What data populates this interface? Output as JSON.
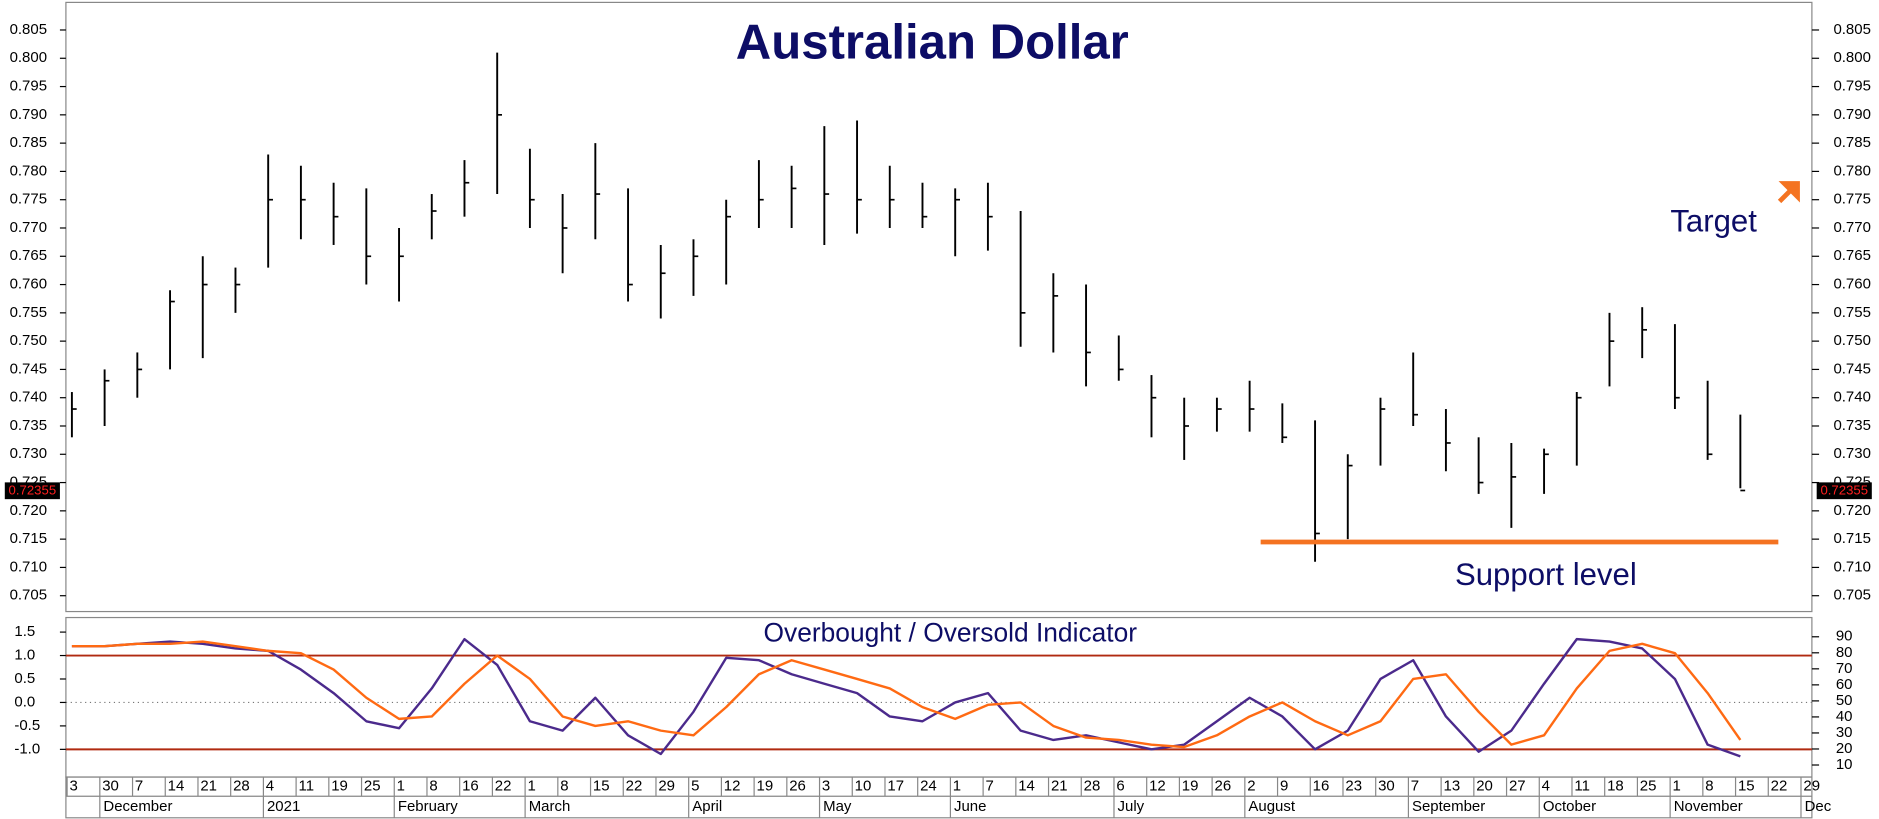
{
  "chart_data": [
    {
      "type": "ohlc",
      "title": "Australian Dollar",
      "color": "#000000",
      "high": [
        0.741,
        0.745,
        0.748,
        0.759,
        0.765,
        0.763,
        0.783,
        0.781,
        0.778,
        0.777,
        0.77,
        0.776,
        0.782,
        0.801,
        0.784,
        0.776,
        0.785,
        0.777,
        0.767,
        0.768,
        0.775,
        0.782,
        0.781,
        0.788,
        0.789,
        0.781,
        0.778,
        0.777,
        0.778,
        0.773,
        0.762,
        0.76,
        0.751,
        0.744,
        0.74,
        0.74,
        0.743,
        0.739,
        0.736,
        0.73,
        0.74,
        0.748,
        0.738,
        0.733,
        0.732,
        0.731,
        0.741,
        0.755,
        0.756,
        0.753,
        0.743,
        0.737,
        null,
        null
      ],
      "low": [
        0.733,
        0.735,
        0.74,
        0.745,
        0.747,
        0.755,
        0.763,
        0.768,
        0.767,
        0.76,
        0.757,
        0.768,
        0.772,
        0.776,
        0.77,
        0.762,
        0.768,
        0.757,
        0.754,
        0.758,
        0.76,
        0.77,
        0.77,
        0.767,
        0.769,
        0.77,
        0.77,
        0.765,
        0.766,
        0.749,
        0.748,
        0.742,
        0.743,
        0.733,
        0.729,
        0.734,
        0.734,
        0.732,
        0.711,
        0.715,
        0.728,
        0.735,
        0.727,
        0.723,
        0.717,
        0.723,
        0.728,
        0.742,
        0.747,
        0.738,
        0.729,
        0.724,
        null,
        null
      ],
      "close": [
        0.738,
        0.743,
        0.745,
        0.757,
        0.76,
        0.76,
        0.775,
        0.775,
        0.772,
        0.765,
        0.765,
        0.773,
        0.778,
        0.79,
        0.775,
        0.77,
        0.776,
        0.76,
        0.762,
        0.765,
        0.772,
        0.775,
        0.777,
        0.776,
        0.775,
        0.775,
        0.772,
        0.775,
        0.772,
        0.755,
        0.758,
        0.748,
        0.745,
        0.74,
        0.735,
        0.738,
        0.738,
        0.733,
        0.716,
        0.728,
        0.738,
        0.737,
        0.732,
        0.725,
        0.726,
        0.73,
        0.74,
        0.75,
        0.752,
        0.74,
        0.73,
        0.7236,
        null,
        null
      ],
      "ylim": [
        0.7022,
        0.8103
      ],
      "yticks": [
        0.705,
        {
          "value": 0.71,
          "label": "0.710"
        },
        0.715,
        {
          "value": 0.72,
          "label": "0.720"
        },
        0.725,
        {
          "value": 0.73,
          "label": "0.730"
        },
        0.735,
        {
          "value": 0.74,
          "label": "0.740"
        },
        0.745,
        {
          "value": 0.75,
          "label": "0.750"
        },
        0.755,
        {
          "value": 0.76,
          "label": "0.760"
        },
        0.765,
        {
          "value": 0.77,
          "label": "0.770"
        },
        0.775,
        {
          "value": 0.78,
          "label": "0.780"
        },
        0.785,
        {
          "value": 0.79,
          "label": "0.790"
        },
        0.795,
        {
          "value": 0.8,
          "label": "0.800"
        },
        0.805
      ],
      "last_price": {
        "value": 0.72355,
        "label": "0.72355"
      },
      "target": {
        "label": "Target",
        "color": "#f47321"
      },
      "support": {
        "label": "Support level",
        "value": 0.7145,
        "color": "#f47321"
      }
    },
    {
      "type": "line",
      "title": "Overbought / Oversold Indicator",
      "categories": [
        "3",
        "30",
        "7",
        "14",
        "21",
        "28",
        "4",
        "11",
        "19",
        "25",
        "1",
        "8",
        "16",
        "22",
        "1",
        "8",
        "15",
        "22",
        "29",
        "5",
        "12",
        "19",
        "26",
        "3",
        "10",
        "17",
        "24",
        "1",
        "7",
        "14",
        "21",
        "28",
        "6",
        "12",
        "19",
        "26",
        "2",
        "9",
        "16",
        "23",
        "30",
        "7",
        "13",
        "20",
        "27",
        "4",
        "11",
        "18",
        "25",
        "1",
        "8",
        "15",
        "22",
        "29"
      ],
      "months": [
        null,
        "December",
        null,
        null,
        null,
        null,
        "2021",
        null,
        null,
        null,
        "February",
        null,
        null,
        null,
        "March",
        null,
        null,
        null,
        null,
        "April",
        null,
        null,
        null,
        "May",
        null,
        null,
        null,
        "June",
        null,
        null,
        null,
        null,
        "July",
        null,
        null,
        null,
        "August",
        null,
        null,
        null,
        null,
        "September",
        null,
        null,
        null,
        "October",
        null,
        null,
        null,
        "November",
        null,
        null,
        null,
        "Dec"
      ],
      "series": [
        {
          "color": "#4b2a8c",
          "values": [
            1.2,
            1.2,
            1.25,
            1.3,
            1.25,
            1.15,
            1.1,
            0.7,
            0.2,
            -0.4,
            -0.55,
            0.3,
            1.35,
            0.8,
            -0.4,
            -0.6,
            0.1,
            -0.7,
            -1.1,
            -0.2,
            0.95,
            0.9,
            0.6,
            0.4,
            0.2,
            -0.3,
            -0.4,
            0.0,
            0.2,
            -0.6,
            -0.8,
            -0.7,
            -0.85,
            -1.0,
            -0.9,
            -0.4,
            0.1,
            -0.3,
            -1.0,
            -0.6,
            0.5,
            0.9,
            -0.3,
            -1.05,
            -0.6,
            0.4,
            1.35,
            1.3,
            1.15,
            0.5,
            -0.9,
            -1.15,
            null,
            null
          ]
        },
        {
          "color": "#ff6a13",
          "values": [
            1.2,
            1.2,
            1.25,
            1.25,
            1.3,
            1.2,
            1.1,
            1.05,
            0.7,
            0.1,
            -0.35,
            -0.3,
            0.4,
            1.0,
            0.5,
            -0.3,
            -0.5,
            -0.4,
            -0.6,
            -0.7,
            -0.1,
            0.6,
            0.9,
            0.7,
            0.5,
            0.3,
            -0.1,
            -0.35,
            -0.05,
            0.0,
            -0.5,
            -0.75,
            -0.8,
            -0.9,
            -0.95,
            -0.7,
            -0.3,
            0.0,
            -0.4,
            -0.7,
            -0.4,
            0.5,
            0.6,
            -0.2,
            -0.9,
            -0.7,
            0.3,
            1.1,
            1.25,
            1.05,
            0.2,
            -0.8,
            null,
            null
          ]
        }
      ],
      "ylim": [
        -1.59,
        1.81
      ],
      "yticks": [
        1.5,
        {
          "value": 1.0,
          "label": "1.0"
        },
        0.5,
        {
          "value": 0.0,
          "label": "0.0"
        },
        -0.5,
        {
          "value": -1.0,
          "label": "-1.0"
        }
      ],
      "y2lim": [
        2.5,
        102
      ],
      "y2ticks": [
        90,
        80,
        70,
        60,
        50,
        40,
        30,
        20,
        10
      ],
      "levels": [
        1.0,
        -1.0
      ],
      "level_color": "#b02a10",
      "dotted_line": 0
    }
  ]
}
